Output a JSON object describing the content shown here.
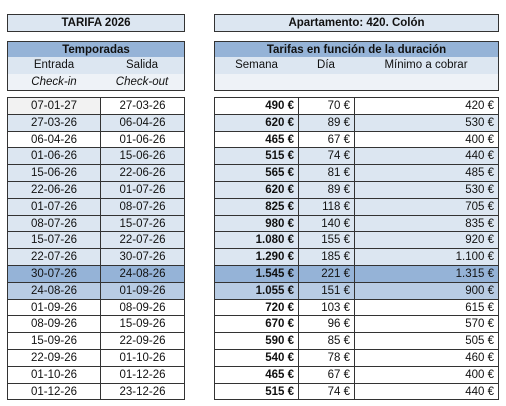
{
  "header": {
    "left_title": "TARIFA 2026",
    "right_title": "Apartamento: 420. Colón"
  },
  "columns": {
    "seasons": "Temporadas",
    "prices": "Tarifas en función de la duración",
    "entry": "Entrada",
    "exit": "Salida",
    "week": "Semana",
    "day": "Día",
    "minimum": "Mínimo a cobrar",
    "checkin": "Check-in",
    "checkout": "Check-out"
  },
  "rows": [
    [
      "07-01-27",
      "27-03-26",
      "490 €",
      "70 €",
      "420 €"
    ],
    [
      "27-03-26",
      "06-04-26",
      "620 €",
      "89 €",
      "530 €"
    ],
    [
      "06-04-26",
      "01-06-26",
      "465 €",
      "67 €",
      "400 €"
    ],
    [
      "01-06-26",
      "15-06-26",
      "515 €",
      "74 €",
      "440 €"
    ],
    [
      "15-06-26",
      "22-06-26",
      "565 €",
      "81 €",
      "485 €"
    ],
    [
      "22-06-26",
      "01-07-26",
      "620 €",
      "89 €",
      "530 €"
    ],
    [
      "01-07-26",
      "08-07-26",
      "825 €",
      "118 €",
      "705 €"
    ],
    [
      "08-07-26",
      "15-07-26",
      "980 €",
      "140 €",
      "835 €"
    ],
    [
      "15-07-26",
      "22-07-26",
      "1.080 €",
      "155 €",
      "920 €"
    ],
    [
      "22-07-26",
      "30-07-26",
      "1.290 €",
      "185 €",
      "1.100 €"
    ],
    [
      "30-07-26",
      "24-08-26",
      "1.545 €",
      "221 €",
      "1.315 €"
    ],
    [
      "24-08-26",
      "01-09-26",
      "1.055 €",
      "151 €",
      "900 €"
    ],
    [
      "01-09-26",
      "08-09-26",
      "720 €",
      "103 €",
      "615 €"
    ],
    [
      "08-09-26",
      "15-09-26",
      "670 €",
      "96 €",
      "570 €"
    ],
    [
      "15-09-26",
      "22-09-26",
      "590 €",
      "85 €",
      "505 €"
    ],
    [
      "22-09-26",
      "01-10-26",
      "540 €",
      "78 €",
      "460 €"
    ],
    [
      "01-10-26",
      "01-12-26",
      "465 €",
      "67 €",
      "400 €"
    ],
    [
      "01-12-26",
      "23-12-26",
      "515 €",
      "74 €",
      "440 €"
    ]
  ]
}
